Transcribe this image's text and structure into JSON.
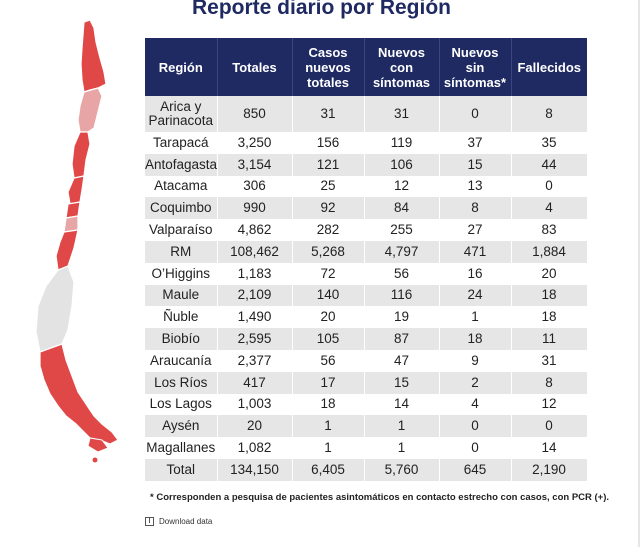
{
  "title": "Reporte diario por Región",
  "table": {
    "headers": {
      "region": "Región",
      "totales": "Totales",
      "casos_nuevos_totales": "Casos nuevos totales",
      "nuevos_con_sintomas": "Nuevos con síntomas",
      "nuevos_sin_sintomas": "Nuevos sin síntomas*",
      "fallecidos": "Fallecidos"
    },
    "rows": [
      {
        "region": "Arica y Parinacota",
        "totales": "850",
        "casos_nuevos": "31",
        "con_sintomas": "31",
        "sin_sintomas": "0",
        "fallecidos": "8"
      },
      {
        "region": "Tarapacá",
        "totales": "3,250",
        "casos_nuevos": "156",
        "con_sintomas": "119",
        "sin_sintomas": "37",
        "fallecidos": "35"
      },
      {
        "region": "Antofagasta",
        "totales": "3,154",
        "casos_nuevos": "121",
        "con_sintomas": "106",
        "sin_sintomas": "15",
        "fallecidos": "44"
      },
      {
        "region": "Atacama",
        "totales": "306",
        "casos_nuevos": "25",
        "con_sintomas": "12",
        "sin_sintomas": "13",
        "fallecidos": "0"
      },
      {
        "region": "Coquimbo",
        "totales": "990",
        "casos_nuevos": "92",
        "con_sintomas": "84",
        "sin_sintomas": "8",
        "fallecidos": "4"
      },
      {
        "region": "Valparaíso",
        "totales": "4,862",
        "casos_nuevos": "282",
        "con_sintomas": "255",
        "sin_sintomas": "27",
        "fallecidos": "83"
      },
      {
        "region": "RM",
        "totales": "108,462",
        "casos_nuevos": "5,268",
        "con_sintomas": "4,797",
        "sin_sintomas": "471",
        "fallecidos": "1,884"
      },
      {
        "region": "O’Higgins",
        "totales": "1,183",
        "casos_nuevos": "72",
        "con_sintomas": "56",
        "sin_sintomas": "16",
        "fallecidos": "20"
      },
      {
        "region": "Maule",
        "totales": "2,109",
        "casos_nuevos": "140",
        "con_sintomas": "116",
        "sin_sintomas": "24",
        "fallecidos": "18"
      },
      {
        "region": "Ñuble",
        "totales": "1,490",
        "casos_nuevos": "20",
        "con_sintomas": "19",
        "sin_sintomas": "1",
        "fallecidos": "18"
      },
      {
        "region": "Biobío",
        "totales": "2,595",
        "casos_nuevos": "105",
        "con_sintomas": "87",
        "sin_sintomas": "18",
        "fallecidos": "11"
      },
      {
        "region": "Araucanía",
        "totales": "2,377",
        "casos_nuevos": "56",
        "con_sintomas": "47",
        "sin_sintomas": "9",
        "fallecidos": "31"
      },
      {
        "region": "Los Ríos",
        "totales": "417",
        "casos_nuevos": "17",
        "con_sintomas": "15",
        "sin_sintomas": "2",
        "fallecidos": "8"
      },
      {
        "region": "Los Lagos",
        "totales": "1,003",
        "casos_nuevos": "18",
        "con_sintomas": "14",
        "sin_sintomas": "4",
        "fallecidos": "12"
      },
      {
        "region": "Aysén",
        "totales": "20",
        "casos_nuevos": "1",
        "con_sintomas": "1",
        "sin_sintomas": "0",
        "fallecidos": "0"
      },
      {
        "region": "Magallanes",
        "totales": "1,082",
        "casos_nuevos": "1",
        "con_sintomas": "1",
        "sin_sintomas": "0",
        "fallecidos": "14"
      }
    ],
    "total": {
      "region": "Total",
      "totales": "134,150",
      "casos_nuevos": "6,405",
      "con_sintomas": "5,760",
      "sin_sintomas": "645",
      "fallecidos": "2,190"
    }
  },
  "footnote": "* Corresponden a pesquisa de pacientes asintomáticos en contacto estrecho con casos, con PCR (+).",
  "download_label": "Download data",
  "colors": {
    "header_bg": "#1f2a63",
    "row_alt": "#e6e6e6",
    "map_red": "#e04848",
    "map_pink": "#e8a5a5",
    "map_gray": "#e3e3e3"
  }
}
